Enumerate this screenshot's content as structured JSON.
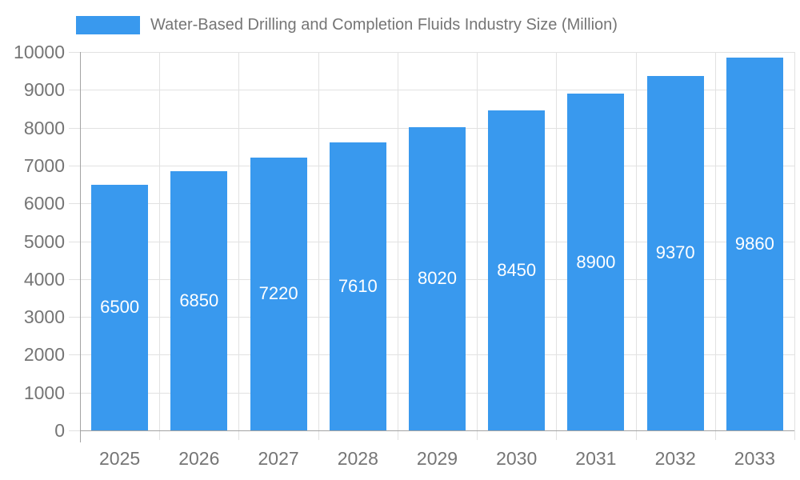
{
  "legend": {
    "label": "Water-Based Drilling and Completion Fluids Industry Size (Million)"
  },
  "chart_data": {
    "type": "bar",
    "title": "Water-Based Drilling and Completion Fluids Industry Size (Million)",
    "series": [
      {
        "name": "Water-Based Drilling and Completion Fluids Industry Size (Million)",
        "values": [
          6500,
          6850,
          7220,
          7610,
          8020,
          8450,
          8900,
          9370,
          9860
        ]
      }
    ],
    "categories": [
      "2025",
      "2026",
      "2027",
      "2028",
      "2029",
      "2030",
      "2031",
      "2032",
      "2033"
    ],
    "value_labels": [
      "6500",
      "6850",
      "7220",
      "7610",
      "8020",
      "8450",
      "8900",
      "9370",
      "9860"
    ],
    "xlabel": "",
    "ylabel": "",
    "ylim": [
      0,
      10000
    ],
    "ytick_step": 1000,
    "yticks": [
      "0",
      "1000",
      "2000",
      "3000",
      "4000",
      "5000",
      "6000",
      "7000",
      "8000",
      "9000",
      "10000"
    ],
    "grid": true,
    "legend_position": "top-left",
    "colors": {
      "bar": "#3999EE",
      "grid": "#E2E2E2",
      "axis": "#A3A3A3",
      "text": "#757575",
      "value_label": "#FFFFFF"
    }
  }
}
